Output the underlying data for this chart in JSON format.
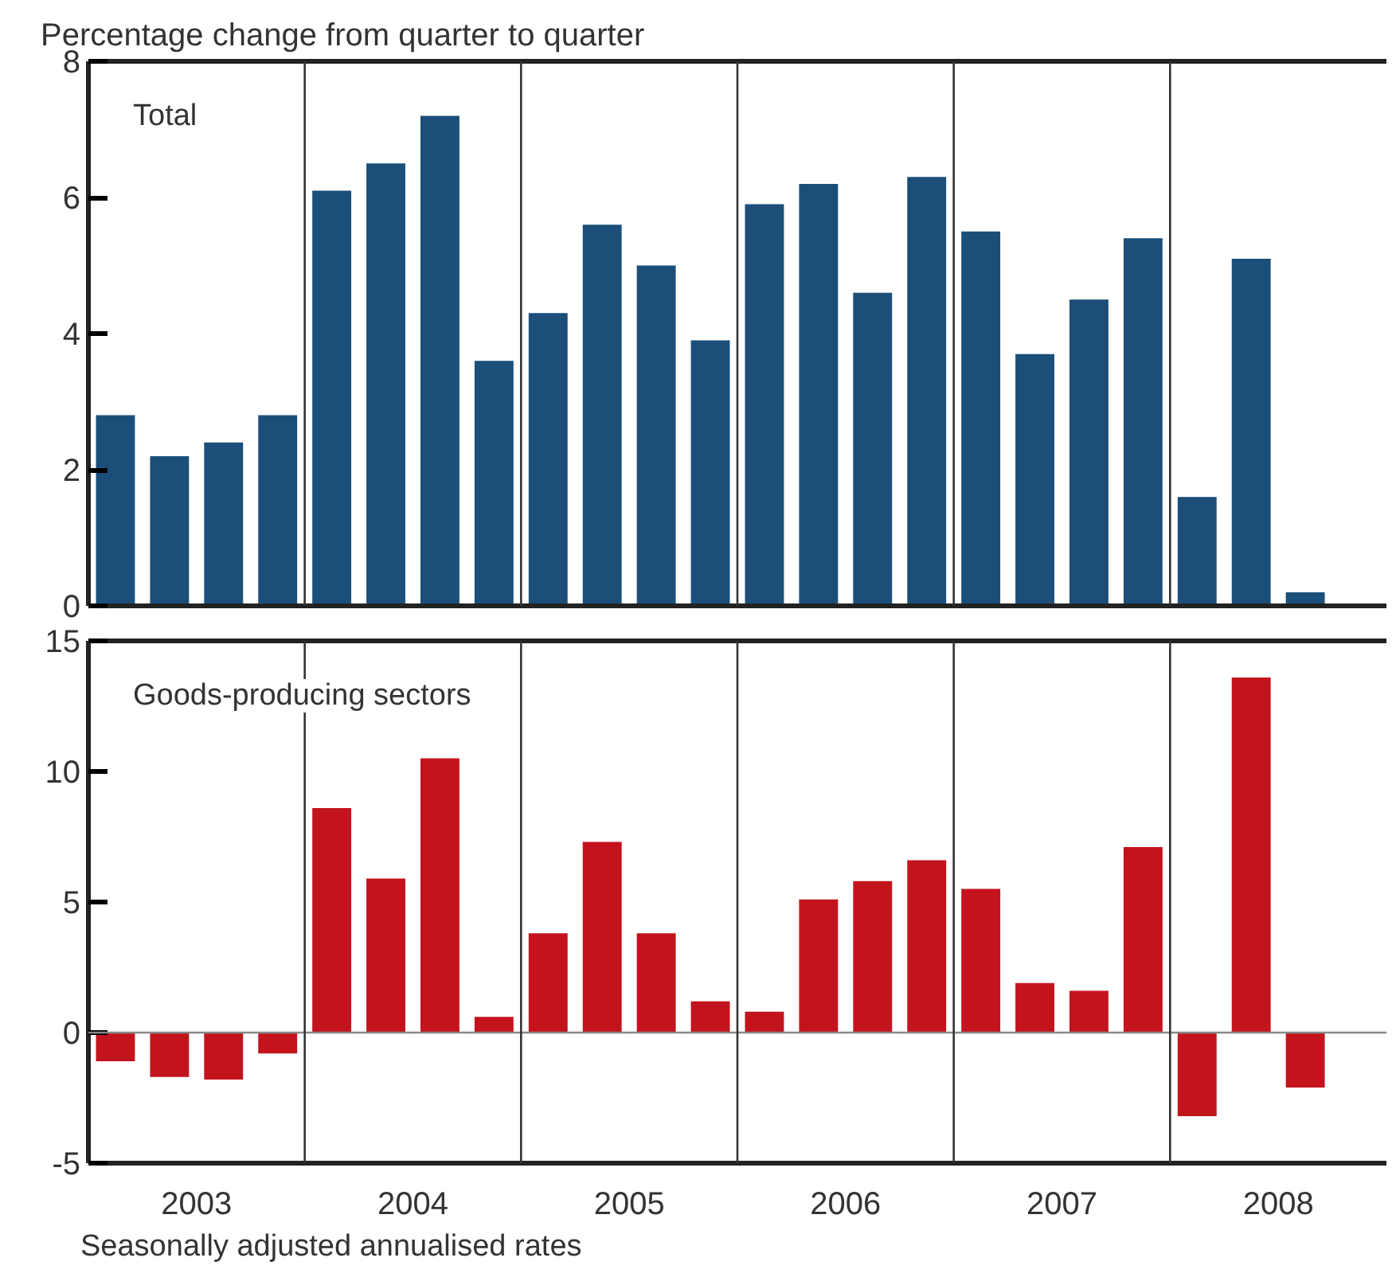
{
  "chart_data": [
    {
      "type": "bar",
      "title": "Total",
      "ylabel": "Percentage change from quarter to quarter",
      "x": [
        2003.125,
        2003.375,
        2003.625,
        2003.875,
        2004.125,
        2004.375,
        2004.625,
        2004.875,
        2005.125,
        2005.375,
        2005.625,
        2005.875,
        2006.125,
        2006.375,
        2006.625,
        2006.875,
        2007.125,
        2007.375,
        2007.625,
        2007.875,
        2008.125,
        2008.375,
        2008.625
      ],
      "series": [
        {
          "color": "#1b4f79",
          "values": [
            2.8,
            2.2,
            2.4,
            2.8,
            6.1,
            6.5,
            7.2,
            3.6,
            4.3,
            5.6,
            5.0,
            3.9,
            5.9,
            6.2,
            4.6,
            6.3,
            5.5,
            3.7,
            4.5,
            5.4,
            1.6,
            5.1,
            0.2
          ]
        }
      ],
      "xlim": [
        2003,
        2009
      ],
      "ylim": [
        0,
        8
      ],
      "yticks": [
        0,
        2,
        4,
        6,
        8
      ],
      "tick_labels": "y",
      "grid": false,
      "ref_lines": [
        {
          "axis": "x",
          "value": 2004
        },
        {
          "axis": "x",
          "value": 2005
        },
        {
          "axis": "x",
          "value": 2006
        },
        {
          "axis": "x",
          "value": 2007
        },
        {
          "axis": "x",
          "value": 2008
        }
      ]
    },
    {
      "type": "bar",
      "title": "Goods-producing sectors",
      "annotations": [
        "Seasonally adjusted annualised rates"
      ],
      "x": [
        2003.125,
        2003.375,
        2003.625,
        2003.875,
        2004.125,
        2004.375,
        2004.625,
        2004.875,
        2005.125,
        2005.375,
        2005.625,
        2005.875,
        2006.125,
        2006.375,
        2006.625,
        2006.875,
        2007.125,
        2007.375,
        2007.625,
        2007.875,
        2008.125,
        2008.375,
        2008.625
      ],
      "series": [
        {
          "color": "#c3141d",
          "values": [
            -1.1,
            -1.7,
            -1.8,
            -0.8,
            8.6,
            5.9,
            10.5,
            0.6,
            3.8,
            7.3,
            3.8,
            1.2,
            0.8,
            5.1,
            5.8,
            6.6,
            5.5,
            1.9,
            1.6,
            7.1,
            -3.2,
            13.6,
            -2.1
          ]
        }
      ],
      "xlim": [
        2003,
        2009
      ],
      "ylim": [
        -5,
        15
      ],
      "yticks": [
        -5,
        0,
        5,
        10,
        15
      ],
      "xticks": [
        {
          "value": 2003.5,
          "label": "2003"
        },
        {
          "value": 2004.5,
          "label": "2004"
        },
        {
          "value": 2005.5,
          "label": "2005"
        },
        {
          "value": 2006.5,
          "label": "2006"
        },
        {
          "value": 2007.5,
          "label": "2007"
        },
        {
          "value": 2008.5,
          "label": "2008"
        }
      ],
      "grid": false,
      "ref_lines": [
        {
          "axis": "y",
          "value": 0,
          "color": "#888888"
        },
        {
          "axis": "x",
          "value": 2004
        },
        {
          "axis": "x",
          "value": 2005
        },
        {
          "axis": "x",
          "value": 2006
        },
        {
          "axis": "x",
          "value": 2007
        },
        {
          "axis": "x",
          "value": 2008
        }
      ]
    }
  ]
}
